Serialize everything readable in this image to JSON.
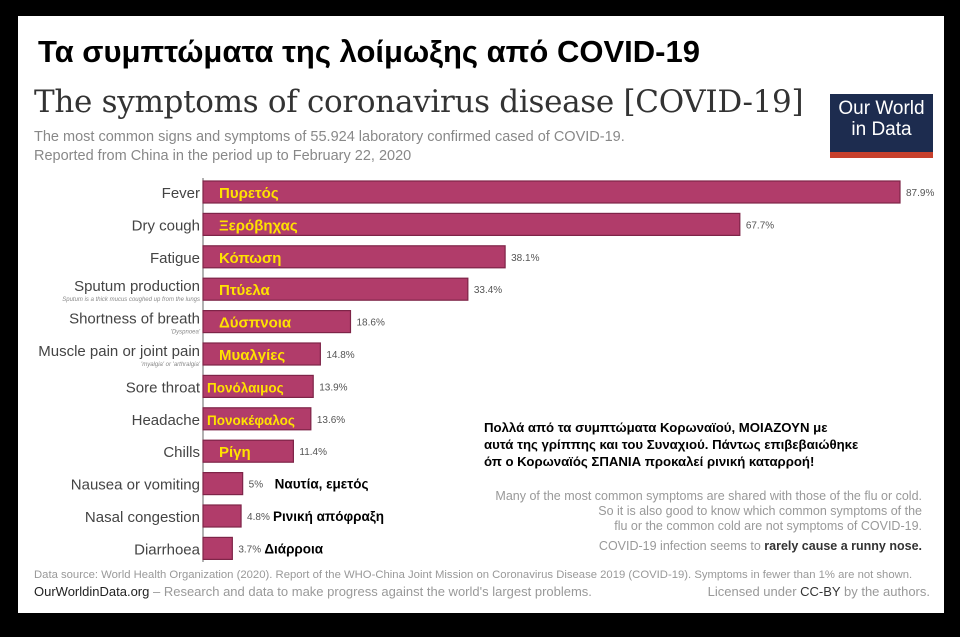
{
  "greek_title": "Τα συμπτώματα της λοίμωξης από COVID-19",
  "logo": {
    "line1": "Our World",
    "line2": "in Data"
  },
  "colors": {
    "bar": "#b13c6a",
    "bar_border": "#7e2448",
    "greek_label": "#ffe200",
    "logo_bg": "#1d2c4f",
    "logo_accent": "#c7402c"
  },
  "chart_data": {
    "type": "bar",
    "orientation": "horizontal",
    "title": "The symptoms of coronavirus disease [COVID-19]",
    "subtitle": [
      "The most common signs and symptoms of 55.924 laboratory confirmed cased of COVID-19.",
      "Reported from China in the period up to February 22, 2020"
    ],
    "categories": [
      "Fever",
      "Dry cough",
      "Fatigue",
      "Sputum production",
      "Shortness of breath",
      "Muscle pain or joint pain",
      "Sore throat",
      "Headache",
      "Chills",
      "Nausea or vomiting",
      "Nasal congestion",
      "Diarrhoea"
    ],
    "category_notes": [
      "",
      "",
      "",
      "Sputum is a thick mucus coughed up from the lungs",
      "'Dyspnoea'",
      "'myalgia' or 'arthralgia'",
      "",
      "",
      "",
      "",
      "",
      ""
    ],
    "greek_labels": [
      "Πυρετός",
      "Ξερόβηχας",
      "Κόπωση",
      "Πτύελα",
      "Δύσπνοια",
      "Μυαλγίες",
      "Πονόλαιμος",
      "Πονοκέφαλος",
      "Ρίγη",
      "Ναυτία, εμετός",
      "Ρινική απόφραξη",
      "Διάρροια"
    ],
    "values": [
      87.9,
      67.7,
      38.1,
      33.4,
      18.6,
      14.8,
      13.9,
      13.6,
      11.4,
      5,
      4.8,
      3.7
    ],
    "value_labels": [
      "87.9%",
      "67.7%",
      "38.1%",
      "33.4%",
      "18.6%",
      "14.8%",
      "13.9%",
      "13.6%",
      "11.4%",
      "5%",
      "4.8%",
      "3.7%"
    ],
    "unit": "%",
    "xlim": [
      0,
      88
    ],
    "grid": false,
    "legend": "none"
  },
  "notes": {
    "greek": [
      "Πολλά από τα συμπτώματα Κορωναϊού, ΜΟΙΑΖΟΥΝ με",
      "αυτά της γρίππης και του Συναχιού. Πάντως επιβεβαιώθηκε",
      "όπ ο Κορωναϊός ΣΠΑΝΙΑ προκαλεί ρινική καταρροή!"
    ],
    "english": [
      "Many of the most common symptoms are shared with those of the flu or cold.",
      "So it is also good to know which common symptoms of the",
      "flu or the common cold are not symptoms of COVID-19."
    ],
    "runny_prefix": "COVID-19 infection seems to ",
    "runny_bold": "rarely cause a runny nose."
  },
  "footer": {
    "source": "Data source: World Health Organization (2020). Report of the WHO-China Joint Mission on Coronavirus Disease 2019 (COVID-19). Symptoms in fewer than 1% are not shown.",
    "site": "OurWorldinData.org",
    "tagline": " – Research and data to make progress against the world's largest problems.",
    "license_prefix": "Licensed under ",
    "license": "CC-BY",
    "license_suffix": " by the authors."
  }
}
